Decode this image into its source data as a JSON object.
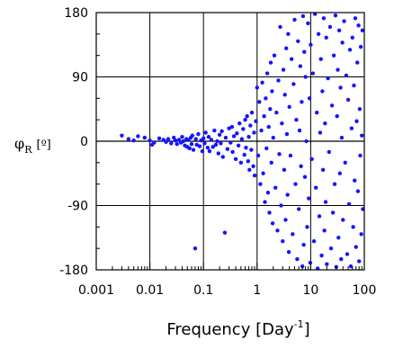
{
  "chart_data": {
    "type": "scatter",
    "title": "",
    "xlabel": {
      "main": "Frequency [Day",
      "sup": "-1",
      "close": "]"
    },
    "ylabel": {
      "symbol": "φ",
      "sub": "R",
      "unit": "[º]"
    },
    "x_scale": "log",
    "xlim": [
      0.001,
      100
    ],
    "ylim": [
      -180,
      180
    ],
    "x_ticks": [
      {
        "value": 0.001,
        "label": "0.001"
      },
      {
        "value": 0.01,
        "label": "0.01"
      },
      {
        "value": 0.1,
        "label": "0.1"
      },
      {
        "value": 1,
        "label": "1"
      },
      {
        "value": 10,
        "label": "10"
      },
      {
        "value": 100,
        "label": "100"
      }
    ],
    "y_ticks": [
      {
        "value": 180,
        "label": "180"
      },
      {
        "value": 90,
        "label": "90"
      },
      {
        "value": 0,
        "label": "0"
      },
      {
        "value": -90,
        "label": "-90"
      },
      {
        "value": -180,
        "label": "-180"
      }
    ],
    "grid": true,
    "marker_color": "#1414ff",
    "series": [
      {
        "points": [
          [
            0.003,
            8
          ],
          [
            0.004,
            3
          ],
          [
            0.005,
            1
          ],
          [
            0.006,
            7
          ],
          [
            0.008,
            5
          ],
          [
            0.01,
            1
          ],
          [
            0.011,
            -5
          ],
          [
            0.012,
            -2
          ],
          [
            0.015,
            4
          ],
          [
            0.018,
            2
          ],
          [
            0.02,
            -1
          ],
          [
            0.022,
            3
          ],
          [
            0.025,
            -3
          ],
          [
            0.028,
            5
          ],
          [
            0.03,
            1
          ],
          [
            0.032,
            -4
          ],
          [
            0.035,
            2
          ],
          [
            0.038,
            -2
          ],
          [
            0.04,
            6
          ],
          [
            0.042,
            0
          ],
          [
            0.045,
            -6
          ],
          [
            0.048,
            3
          ],
          [
            0.05,
            -8
          ],
          [
            0.052,
            2
          ],
          [
            0.055,
            -10
          ],
          [
            0.058,
            5
          ],
          [
            0.06,
            -4
          ],
          [
            0.062,
            8
          ],
          [
            0.065,
            -12
          ],
          [
            0.07,
            -150
          ],
          [
            0.072,
            3
          ],
          [
            0.075,
            -5
          ],
          [
            0.08,
            10
          ],
          [
            0.085,
            -7
          ],
          [
            0.09,
            1
          ],
          [
            0.095,
            -14
          ],
          [
            0.1,
            4
          ],
          [
            0.105,
            -3
          ],
          [
            0.11,
            12
          ],
          [
            0.12,
            -9
          ],
          [
            0.125,
            6
          ],
          [
            0.13,
            -14
          ],
          [
            0.14,
            2
          ],
          [
            0.15,
            -8
          ],
          [
            0.16,
            15
          ],
          [
            0.17,
            -5
          ],
          [
            0.18,
            0
          ],
          [
            0.19,
            -17
          ],
          [
            0.2,
            9
          ],
          [
            0.21,
            -3
          ],
          [
            0.22,
            14
          ],
          [
            0.23,
            -22
          ],
          [
            0.25,
            -128
          ],
          [
            0.26,
            5
          ],
          [
            0.28,
            -11
          ],
          [
            0.3,
            18
          ],
          [
            0.32,
            -2
          ],
          [
            0.34,
            20
          ],
          [
            0.35,
            -15
          ],
          [
            0.37,
            7
          ],
          [
            0.4,
            -25
          ],
          [
            0.42,
            11
          ],
          [
            0.45,
            -6
          ],
          [
            0.47,
            25
          ],
          [
            0.5,
            -30
          ],
          [
            0.52,
            3
          ],
          [
            0.55,
            17
          ],
          [
            0.58,
            -19
          ],
          [
            0.6,
            30
          ],
          [
            0.62,
            -9
          ],
          [
            0.65,
            35
          ],
          [
            0.68,
            -28
          ],
          [
            0.7,
            6
          ],
          [
            0.72,
            -40
          ],
          [
            0.75,
            22
          ],
          [
            0.78,
            -12
          ],
          [
            0.8,
            40
          ],
          [
            0.85,
            -35
          ],
          [
            0.88,
            12
          ],
          [
            0.9,
            -48
          ],
          [
            0.95,
            28
          ],
          [
            1.0,
            75
          ],
          [
            1.05,
            -20
          ],
          [
            1.1,
            55
          ],
          [
            1.15,
            -60
          ],
          [
            1.2,
            15
          ],
          [
            1.25,
            82
          ],
          [
            1.3,
            -45
          ],
          [
            1.35,
            35
          ],
          [
            1.4,
            -85
          ],
          [
            1.45,
            60
          ],
          [
            1.5,
            -10
          ],
          [
            1.55,
            95
          ],
          [
            1.6,
            -72
          ],
          [
            1.65,
            20
          ],
          [
            1.7,
            -100
          ],
          [
            1.75,
            45
          ],
          [
            1.8,
            110
          ],
          [
            1.85,
            -30
          ],
          [
            1.9,
            70
          ],
          [
            1.95,
            -115
          ],
          [
            2.0,
            5
          ],
          [
            2.1,
            120
          ],
          [
            2.2,
            -65
          ],
          [
            2.3,
            40
          ],
          [
            2.4,
            -125
          ],
          [
            2.5,
            85
          ],
          [
            2.6,
            -18
          ],
          [
            2.7,
            160
          ],
          [
            2.8,
            -90
          ],
          [
            2.9,
            25
          ],
          [
            3.0,
            -140
          ],
          [
            3.1,
            100
          ],
          [
            3.2,
            -40
          ],
          [
            3.3,
            65
          ],
          [
            3.4,
            -110
          ],
          [
            3.5,
            130
          ],
          [
            3.6,
            10
          ],
          [
            3.7,
            -75
          ],
          [
            3.8,
            150
          ],
          [
            3.9,
            -155
          ],
          [
            4.0,
            48
          ],
          [
            4.2,
            -20
          ],
          [
            4.4,
            115
          ],
          [
            4.6,
            -130
          ],
          [
            4.8,
            80
          ],
          [
            5.0,
            170
          ],
          [
            5.2,
            -60
          ],
          [
            5.4,
            30
          ],
          [
            5.6,
            -165
          ],
          [
            5.8,
            140
          ],
          [
            6.0,
            -95
          ],
          [
            6.2,
            15
          ],
          [
            6.4,
            105
          ],
          [
            6.6,
            -35
          ],
          [
            6.8,
            55
          ],
          [
            7.0,
            -175
          ],
          [
            7.2,
            175
          ],
          [
            7.4,
            -145
          ],
          [
            7.6,
            125
          ],
          [
            7.8,
            -50
          ],
          [
            8.0,
            90
          ],
          [
            8.3,
            0
          ],
          [
            8.6,
            -120
          ],
          [
            8.9,
            165
          ],
          [
            9.2,
            -80
          ],
          [
            9.5,
            60
          ],
          [
            9.8,
            -170
          ],
          [
            10.0,
            135
          ],
          [
            10.5,
            -25
          ],
          [
            11.0,
            95
          ],
          [
            11.5,
            -140
          ],
          [
            12.0,
            178
          ],
          [
            12.5,
            -65
          ],
          [
            13.0,
            40
          ],
          [
            13.5,
            -178
          ],
          [
            14.0,
            150
          ],
          [
            14.5,
            -105
          ],
          [
            15.0,
            12
          ],
          [
            15.5,
            115
          ],
          [
            16.0,
            -160
          ],
          [
            16.5,
            70
          ],
          [
            17.0,
            -40
          ],
          [
            17.5,
            172
          ],
          [
            18.0,
            -125
          ],
          [
            18.5,
            25
          ],
          [
            19.0,
            -85
          ],
          [
            19.5,
            145
          ],
          [
            20.0,
            -172
          ],
          [
            21.0,
            88
          ],
          [
            22.0,
            -15
          ],
          [
            23.0,
            160
          ],
          [
            24.0,
            -150
          ],
          [
            25.0,
            50
          ],
          [
            26.0,
            -100
          ],
          [
            27.0,
            120
          ],
          [
            28.0,
            -60
          ],
          [
            29.0,
            176
          ],
          [
            30.0,
            -176
          ],
          [
            31.0,
            35
          ],
          [
            32.0,
            100
          ],
          [
            33.0,
            -135
          ],
          [
            34.0,
            155
          ],
          [
            35.0,
            -45
          ],
          [
            36.0,
            75
          ],
          [
            37.0,
            -165
          ],
          [
            38.0,
            5
          ],
          [
            39.0,
            138
          ],
          [
            40.0,
            -110
          ],
          [
            42.0,
            168
          ],
          [
            44.0,
            -30
          ],
          [
            46.0,
            92
          ],
          [
            48.0,
            -158
          ],
          [
            50.0,
            58
          ],
          [
            52.0,
            -88
          ],
          [
            54.0,
            128
          ],
          [
            56.0,
            -175
          ],
          [
            58.0,
            18
          ],
          [
            60.0,
            145
          ],
          [
            62.0,
            -120
          ],
          [
            64.0,
            78
          ],
          [
            66.0,
            -55
          ],
          [
            68.0,
            172
          ],
          [
            70.0,
            -148
          ],
          [
            72.0,
            28
          ],
          [
            74.0,
            110
          ],
          [
            76.0,
            -70
          ],
          [
            78.0,
            162
          ],
          [
            80.0,
            -168
          ],
          [
            82.0,
            45
          ],
          [
            84.0,
            -20
          ],
          [
            86.0,
            132
          ],
          [
            88.0,
            -130
          ],
          [
            90.0,
            8
          ],
          [
            92.0,
            155
          ],
          [
            94.0,
            -95
          ]
        ]
      }
    ]
  }
}
